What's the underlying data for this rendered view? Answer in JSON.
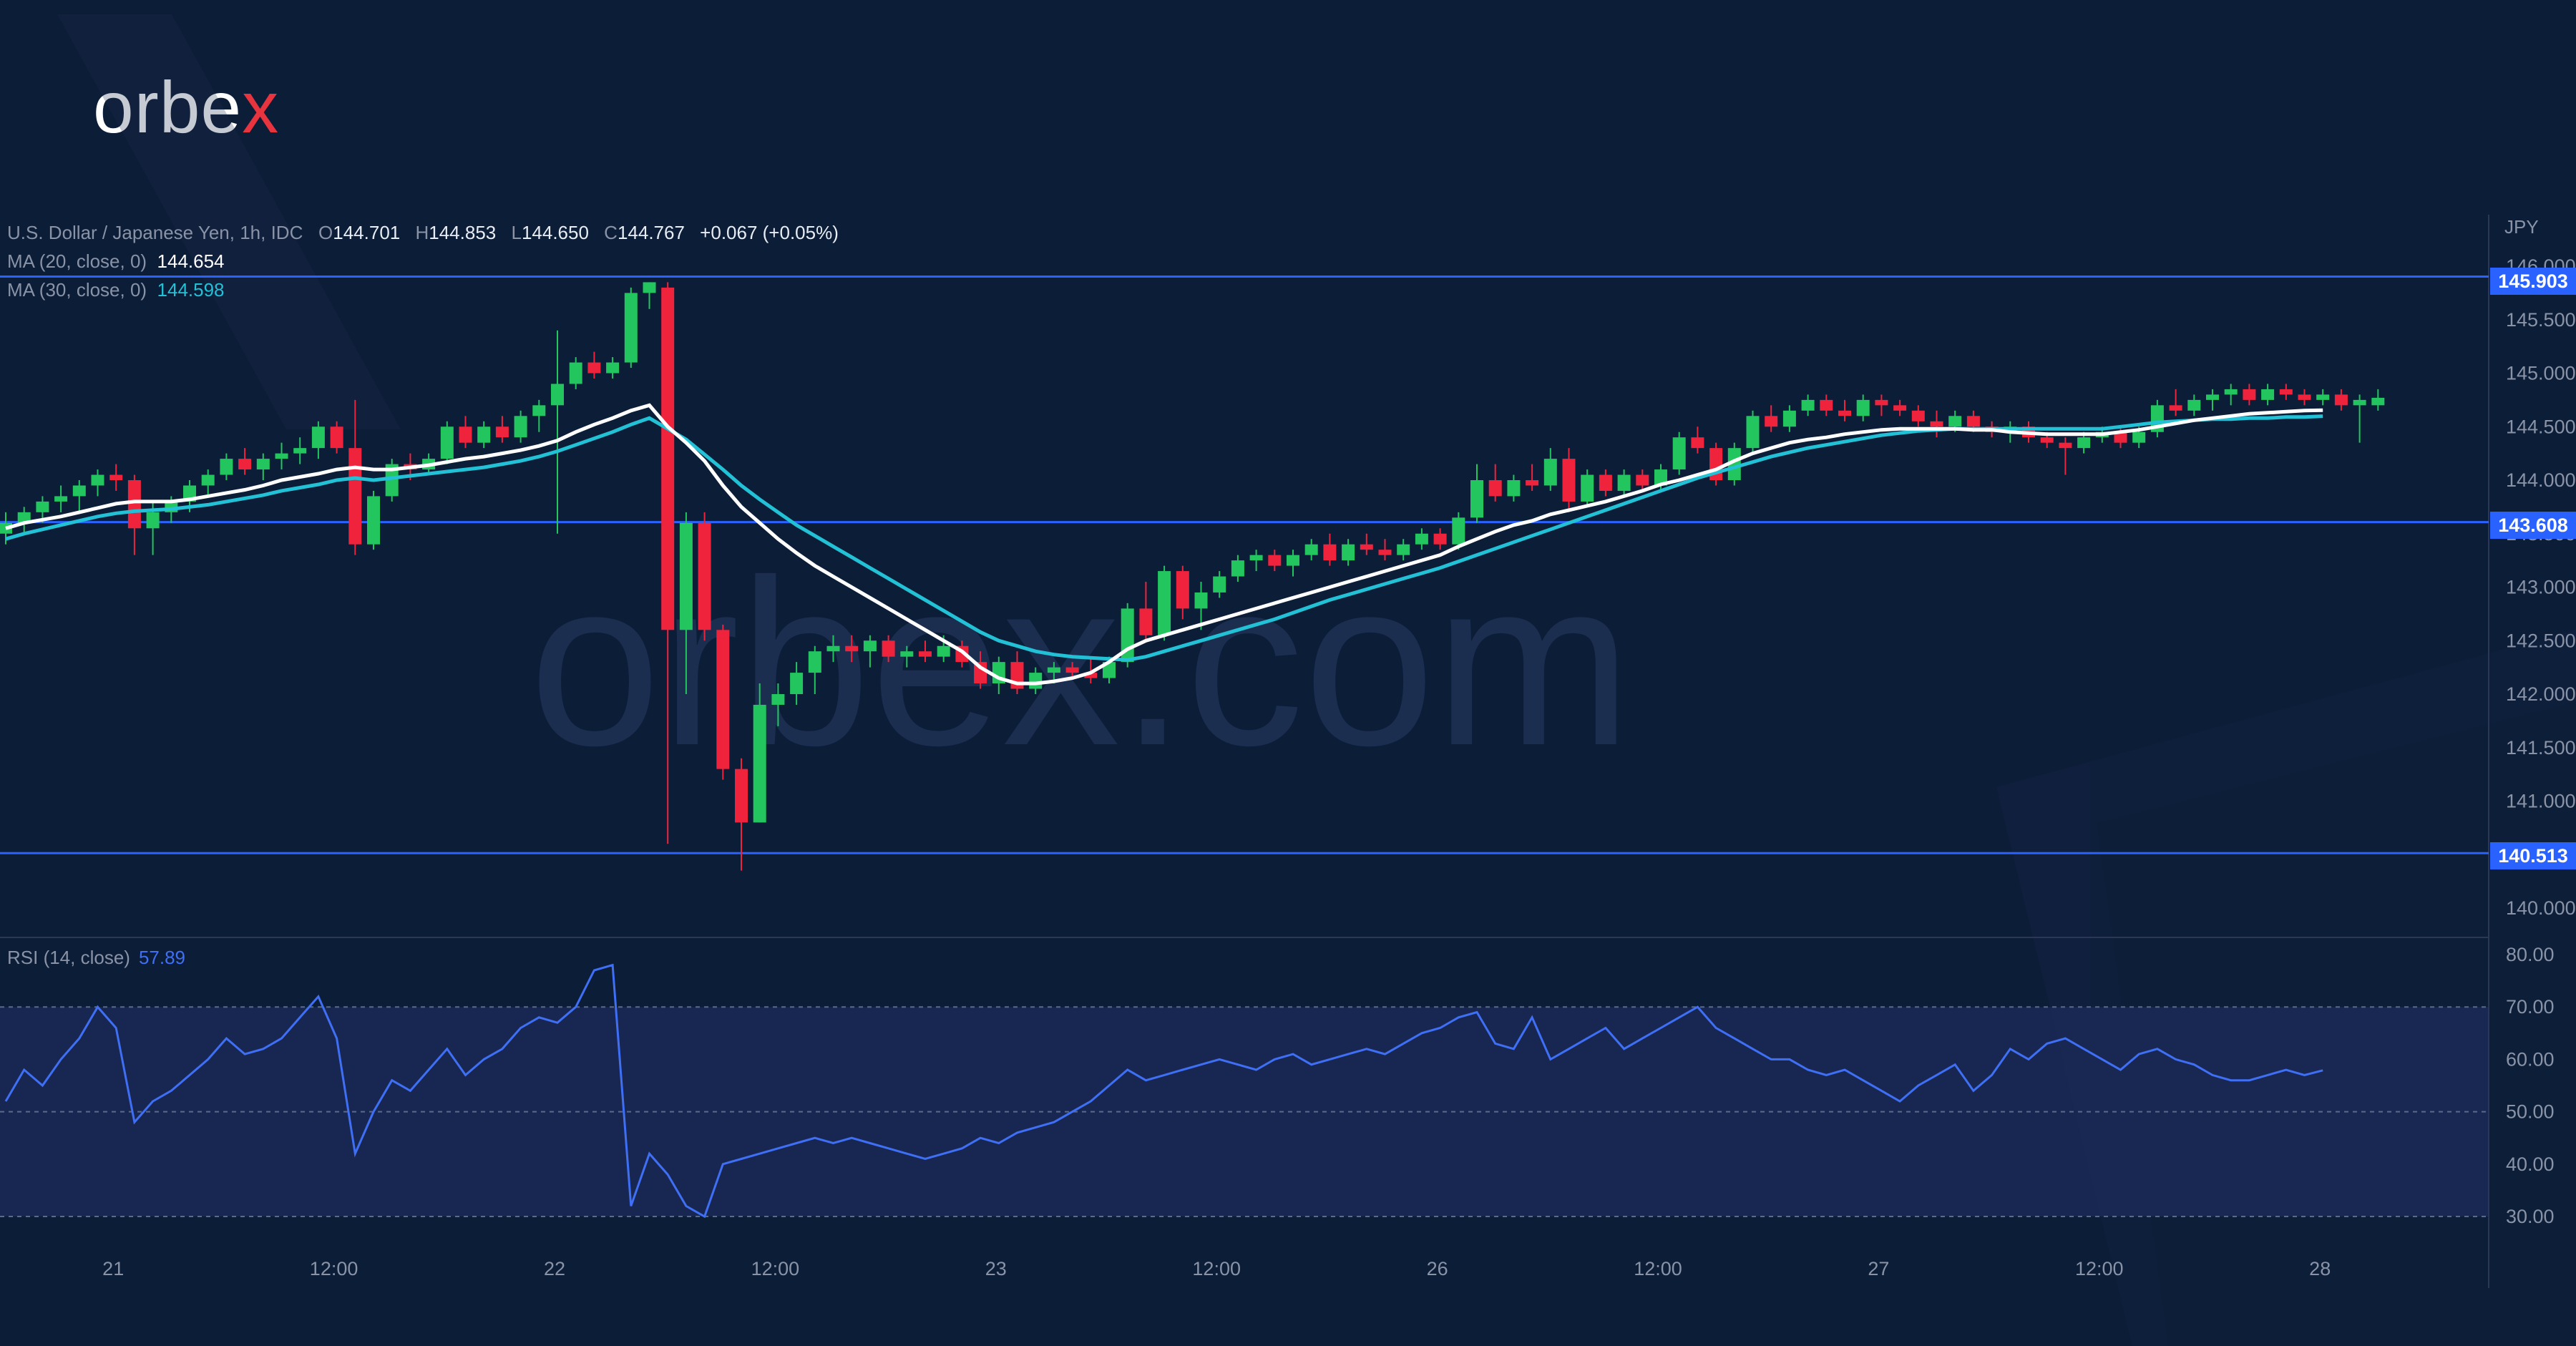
{
  "brand": {
    "logo_text": "orbe",
    "logo_accent": "x",
    "watermark": "orbex.com"
  },
  "colors": {
    "background": "#0c1d38",
    "up": "#22c55e",
    "down": "#f0233c",
    "ma20": "#ffffff",
    "ma30": "#22c1d6",
    "level_line": "#2962ff",
    "rsi": "#3f6ff5"
  },
  "legend": {
    "symbol": "U.S. Dollar / Japanese Yen, 1h, IDC",
    "open_label": "O",
    "open": "144.701",
    "high_label": "H",
    "high": "144.853",
    "low_label": "L",
    "low": "144.650",
    "close_label": "C",
    "close": "144.767",
    "change": "+0.067 (+0.05%)",
    "ma20_label": "MA (20, close, 0)",
    "ma20_value": "144.654",
    "ma30_label": "MA (30, close, 0)",
    "ma30_value": "144.598"
  },
  "rsi_legend": {
    "label": "RSI (14, close)",
    "value": "57.89"
  },
  "chart_data": {
    "type": "candlestick",
    "currency": "JPY",
    "price_ticks": [
      "146.000",
      "145.500",
      "145.000",
      "144.500",
      "144.000",
      "143.500",
      "143.000",
      "142.500",
      "142.000",
      "141.500",
      "141.000",
      "140.500",
      "140.000"
    ],
    "levels": [
      "145.903",
      "143.608",
      "140.513"
    ],
    "x_ticks": [
      {
        "label": "21",
        "pos": 6
      },
      {
        "label": "12:00",
        "pos": 18
      },
      {
        "label": "22",
        "pos": 30
      },
      {
        "label": "12:00",
        "pos": 42
      },
      {
        "label": "23",
        "pos": 54
      },
      {
        "label": "12:00",
        "pos": 66
      },
      {
        "label": "26",
        "pos": 78
      },
      {
        "label": "12:00",
        "pos": 90
      },
      {
        "label": "27",
        "pos": 102
      },
      {
        "label": "12:00",
        "pos": 114
      },
      {
        "label": "28",
        "pos": 126
      }
    ],
    "candles": [
      [
        143.5,
        143.7,
        143.4,
        143.6
      ],
      [
        143.6,
        143.75,
        143.5,
        143.7
      ],
      [
        143.7,
        143.85,
        143.6,
        143.8
      ],
      [
        143.8,
        143.95,
        143.7,
        143.85
      ],
      [
        143.85,
        144.0,
        143.7,
        143.95
      ],
      [
        143.95,
        144.1,
        143.85,
        144.05
      ],
      [
        144.05,
        144.15,
        143.9,
        144.0
      ],
      [
        144.0,
        144.05,
        143.3,
        143.55
      ],
      [
        143.55,
        143.8,
        143.3,
        143.7
      ],
      [
        143.7,
        143.85,
        143.6,
        143.8
      ],
      [
        143.8,
        144.0,
        143.7,
        143.95
      ],
      [
        143.95,
        144.1,
        143.85,
        144.05
      ],
      [
        144.05,
        144.25,
        144.0,
        144.2
      ],
      [
        144.2,
        144.3,
        144.05,
        144.1
      ],
      [
        144.1,
        144.25,
        144.0,
        144.2
      ],
      [
        144.2,
        144.35,
        144.1,
        144.25
      ],
      [
        144.25,
        144.4,
        144.15,
        144.3
      ],
      [
        144.3,
        144.55,
        144.2,
        144.5
      ],
      [
        144.5,
        144.55,
        144.25,
        144.3
      ],
      [
        144.3,
        144.75,
        143.3,
        143.4
      ],
      [
        143.4,
        143.9,
        143.35,
        143.85
      ],
      [
        143.85,
        144.2,
        143.8,
        144.15
      ],
      [
        144.15,
        144.25,
        144.0,
        144.1
      ],
      [
        144.1,
        144.25,
        144.05,
        144.2
      ],
      [
        144.2,
        144.55,
        144.15,
        144.5
      ],
      [
        144.5,
        144.6,
        144.3,
        144.35
      ],
      [
        144.35,
        144.55,
        144.3,
        144.5
      ],
      [
        144.5,
        144.6,
        144.35,
        144.4
      ],
      [
        144.4,
        144.65,
        144.35,
        144.6
      ],
      [
        144.6,
        144.75,
        144.45,
        144.7
      ],
      [
        144.7,
        145.4,
        143.5,
        144.9
      ],
      [
        144.9,
        145.15,
        144.85,
        145.1
      ],
      [
        145.1,
        145.2,
        144.95,
        145.0
      ],
      [
        145.0,
        145.15,
        144.95,
        145.1
      ],
      [
        145.1,
        145.8,
        145.05,
        145.75
      ],
      [
        145.75,
        145.85,
        145.6,
        145.85
      ],
      [
        145.8,
        145.85,
        140.6,
        142.6
      ],
      [
        142.6,
        143.7,
        142.0,
        143.6
      ],
      [
        143.6,
        143.7,
        142.5,
        142.6
      ],
      [
        142.6,
        142.65,
        141.2,
        141.3
      ],
      [
        141.3,
        141.4,
        140.35,
        140.8
      ],
      [
        140.8,
        142.1,
        140.8,
        141.9
      ],
      [
        141.9,
        142.1,
        141.7,
        142.0
      ],
      [
        142.0,
        142.3,
        141.9,
        142.2
      ],
      [
        142.2,
        142.45,
        142.0,
        142.4
      ],
      [
        142.4,
        142.55,
        142.3,
        142.45
      ],
      [
        142.45,
        142.55,
        142.3,
        142.4
      ],
      [
        142.4,
        142.55,
        142.25,
        142.5
      ],
      [
        142.5,
        142.55,
        142.3,
        142.35
      ],
      [
        142.35,
        142.45,
        142.25,
        142.4
      ],
      [
        142.4,
        142.5,
        142.3,
        142.35
      ],
      [
        142.35,
        142.55,
        142.3,
        142.45
      ],
      [
        142.45,
        142.5,
        142.25,
        142.3
      ],
      [
        142.3,
        142.4,
        142.05,
        142.1
      ],
      [
        142.1,
        142.35,
        142.0,
        142.3
      ],
      [
        142.3,
        142.4,
        142.0,
        142.05
      ],
      [
        142.05,
        142.25,
        142.0,
        142.2
      ],
      [
        142.2,
        142.3,
        142.1,
        142.25
      ],
      [
        142.25,
        142.3,
        142.15,
        142.2
      ],
      [
        142.2,
        142.35,
        142.1,
        142.15
      ],
      [
        142.15,
        142.35,
        142.1,
        142.3
      ],
      [
        142.3,
        142.85,
        142.25,
        142.8
      ],
      [
        142.8,
        143.05,
        142.5,
        142.55
      ],
      [
        142.55,
        143.2,
        142.5,
        143.15
      ],
      [
        143.15,
        143.2,
        142.7,
        142.8
      ],
      [
        142.8,
        143.05,
        142.6,
        142.95
      ],
      [
        142.95,
        143.15,
        142.9,
        143.1
      ],
      [
        143.1,
        143.3,
        143.05,
        143.25
      ],
      [
        143.25,
        143.35,
        143.15,
        143.3
      ],
      [
        143.3,
        143.35,
        143.15,
        143.2
      ],
      [
        143.2,
        143.35,
        143.1,
        143.3
      ],
      [
        143.3,
        143.45,
        143.25,
        143.4
      ],
      [
        143.4,
        143.5,
        143.2,
        143.25
      ],
      [
        143.25,
        143.45,
        143.2,
        143.4
      ],
      [
        143.4,
        143.5,
        143.3,
        143.35
      ],
      [
        143.35,
        143.45,
        143.25,
        143.3
      ],
      [
        143.3,
        143.45,
        143.25,
        143.4
      ],
      [
        143.4,
        143.55,
        143.35,
        143.5
      ],
      [
        143.5,
        143.55,
        143.35,
        143.4
      ],
      [
        143.4,
        143.7,
        143.35,
        143.65
      ],
      [
        143.65,
        144.15,
        143.6,
        144.0
      ],
      [
        144.0,
        144.15,
        143.8,
        143.85
      ],
      [
        143.85,
        144.05,
        143.8,
        144.0
      ],
      [
        144.0,
        144.15,
        143.9,
        143.95
      ],
      [
        143.95,
        144.3,
        143.9,
        144.2
      ],
      [
        144.2,
        144.3,
        143.7,
        143.8
      ],
      [
        143.8,
        144.1,
        143.75,
        144.05
      ],
      [
        144.05,
        144.1,
        143.85,
        143.9
      ],
      [
        143.9,
        144.1,
        143.85,
        144.05
      ],
      [
        144.05,
        144.1,
        143.9,
        143.95
      ],
      [
        143.95,
        144.15,
        143.9,
        144.1
      ],
      [
        144.1,
        144.45,
        144.05,
        144.4
      ],
      [
        144.4,
        144.5,
        144.25,
        144.3
      ],
      [
        144.3,
        144.35,
        143.95,
        144.0
      ],
      [
        144.0,
        144.35,
        143.95,
        144.3
      ],
      [
        144.3,
        144.65,
        144.25,
        144.6
      ],
      [
        144.6,
        144.7,
        144.45,
        144.5
      ],
      [
        144.5,
        144.7,
        144.45,
        144.65
      ],
      [
        144.65,
        144.8,
        144.6,
        144.75
      ],
      [
        144.75,
        144.8,
        144.6,
        144.65
      ],
      [
        144.65,
        144.75,
        144.55,
        144.6
      ],
      [
        144.6,
        144.8,
        144.55,
        144.75
      ],
      [
        144.75,
        144.8,
        144.6,
        144.7
      ],
      [
        144.7,
        144.75,
        144.6,
        144.65
      ],
      [
        144.65,
        144.7,
        144.5,
        144.55
      ],
      [
        144.55,
        144.65,
        144.4,
        144.5
      ],
      [
        144.5,
        144.65,
        144.45,
        144.6
      ],
      [
        144.6,
        144.65,
        144.45,
        144.5
      ],
      [
        144.5,
        144.55,
        144.4,
        144.45
      ],
      [
        144.45,
        144.55,
        144.35,
        144.5
      ],
      [
        144.5,
        144.55,
        144.35,
        144.4
      ],
      [
        144.4,
        144.45,
        144.3,
        144.35
      ],
      [
        144.35,
        144.4,
        144.05,
        144.3
      ],
      [
        144.3,
        144.45,
        144.25,
        144.4
      ],
      [
        144.4,
        144.5,
        144.35,
        144.45
      ],
      [
        144.45,
        144.5,
        144.3,
        144.35
      ],
      [
        144.35,
        144.5,
        144.3,
        144.45
      ],
      [
        144.45,
        144.75,
        144.4,
        144.7
      ],
      [
        144.7,
        144.85,
        144.6,
        144.65
      ],
      [
        144.65,
        144.8,
        144.6,
        144.75
      ],
      [
        144.75,
        144.85,
        144.65,
        144.8
      ],
      [
        144.8,
        144.9,
        144.7,
        144.85
      ],
      [
        144.85,
        144.9,
        144.7,
        144.75
      ],
      [
        144.75,
        144.9,
        144.7,
        144.85
      ],
      [
        144.85,
        144.9,
        144.75,
        144.8
      ],
      [
        144.8,
        144.85,
        144.7,
        144.75
      ],
      [
        144.75,
        144.85,
        144.7,
        144.8
      ],
      [
        144.8,
        144.85,
        144.65,
        144.7
      ],
      [
        144.7,
        144.8,
        144.35,
        144.75
      ],
      [
        144.7,
        144.85,
        144.65,
        144.77
      ]
    ],
    "ma20": [
      143.55,
      143.6,
      143.63,
      143.66,
      143.7,
      143.74,
      143.78,
      143.8,
      143.8,
      143.8,
      143.82,
      143.85,
      143.88,
      143.91,
      143.95,
      144.0,
      144.03,
      144.06,
      144.1,
      144.12,
      144.1,
      144.1,
      144.12,
      144.14,
      144.17,
      144.2,
      144.22,
      144.25,
      144.28,
      144.32,
      144.37,
      144.45,
      144.52,
      144.58,
      144.65,
      144.7,
      144.5,
      144.35,
      144.18,
      143.95,
      143.75,
      143.6,
      143.45,
      143.32,
      143.2,
      143.1,
      143.0,
      142.9,
      142.8,
      142.7,
      142.6,
      142.5,
      142.4,
      142.25,
      142.15,
      142.1,
      142.1,
      142.12,
      142.15,
      142.2,
      142.3,
      142.42,
      142.5,
      142.55,
      142.6,
      142.65,
      142.7,
      142.75,
      142.8,
      142.85,
      142.9,
      142.95,
      143.0,
      143.05,
      143.1,
      143.15,
      143.2,
      143.25,
      143.3,
      143.38,
      143.45,
      143.52,
      143.58,
      143.62,
      143.68,
      143.72,
      143.76,
      143.8,
      143.85,
      143.9,
      143.96,
      144.0,
      144.05,
      144.1,
      144.18,
      144.25,
      144.3,
      144.35,
      144.38,
      144.4,
      144.43,
      144.45,
      144.47,
      144.48,
      144.48,
      144.48,
      144.48,
      144.47,
      144.47,
      144.45,
      144.44,
      144.43,
      144.43,
      144.43,
      144.43,
      144.45,
      144.47,
      144.5,
      144.53,
      144.56,
      144.58,
      144.6,
      144.62,
      144.63,
      144.64,
      144.65,
      144.654
    ],
    "ma30": [
      143.45,
      143.5,
      143.54,
      143.58,
      143.62,
      143.66,
      143.69,
      143.71,
      143.72,
      143.73,
      143.75,
      143.77,
      143.8,
      143.83,
      143.86,
      143.9,
      143.93,
      143.96,
      144.0,
      144.02,
      144.0,
      144.02,
      144.04,
      144.06,
      144.08,
      144.1,
      144.12,
      144.15,
      144.18,
      144.22,
      144.27,
      144.33,
      144.39,
      144.45,
      144.52,
      144.58,
      144.48,
      144.38,
      144.24,
      144.1,
      143.95,
      143.82,
      143.7,
      143.58,
      143.48,
      143.38,
      143.28,
      143.18,
      143.08,
      142.98,
      142.88,
      142.78,
      142.68,
      142.58,
      142.5,
      142.45,
      142.4,
      142.37,
      142.35,
      142.34,
      142.33,
      142.32,
      142.35,
      142.4,
      142.45,
      142.5,
      142.55,
      142.6,
      142.65,
      142.7,
      142.76,
      142.82,
      142.88,
      142.93,
      142.98,
      143.03,
      143.08,
      143.13,
      143.18,
      143.24,
      143.3,
      143.36,
      143.42,
      143.48,
      143.54,
      143.6,
      143.66,
      143.72,
      143.78,
      143.84,
      143.9,
      143.96,
      144.02,
      144.07,
      144.12,
      144.17,
      144.22,
      144.26,
      144.3,
      144.33,
      144.36,
      144.39,
      144.42,
      144.44,
      144.46,
      144.47,
      144.48,
      144.48,
      144.48,
      144.48,
      144.48,
      144.48,
      144.48,
      144.48,
      144.48,
      144.5,
      144.52,
      144.54,
      144.55,
      144.56,
      144.57,
      144.57,
      144.58,
      144.58,
      144.59,
      144.59,
      144.598
    ],
    "rsi_ticks": [
      "80.00",
      "70.00",
      "60.00",
      "50.00",
      "40.00",
      "30.00"
    ],
    "rsi_bands": [
      30,
      50,
      70
    ],
    "rsi": [
      52,
      58,
      55,
      60,
      64,
      70,
      66,
      48,
      52,
      54,
      57,
      60,
      64,
      61,
      62,
      64,
      68,
      72,
      64,
      42,
      50,
      56,
      54,
      58,
      62,
      57,
      60,
      62,
      66,
      68,
      67,
      70,
      77,
      78,
      32,
      42,
      38,
      32,
      30,
      40,
      41,
      42,
      43,
      44,
      45,
      44,
      45,
      44,
      43,
      42,
      41,
      42,
      43,
      45,
      44,
      46,
      47,
      48,
      50,
      52,
      55,
      58,
      56,
      57,
      58,
      59,
      60,
      59,
      58,
      60,
      61,
      59,
      60,
      61,
      62,
      61,
      63,
      65,
      66,
      68,
      69,
      63,
      62,
      68,
      60,
      62,
      64,
      66,
      62,
      64,
      66,
      68,
      70,
      66,
      64,
      62,
      60,
      60,
      58,
      57,
      58,
      56,
      54,
      52,
      55,
      57,
      59,
      54,
      57,
      62,
      60,
      63,
      64,
      62,
      60,
      58,
      61,
      62,
      60,
      59,
      57,
      56,
      56,
      57,
      58,
      57,
      57.89
    ]
  }
}
